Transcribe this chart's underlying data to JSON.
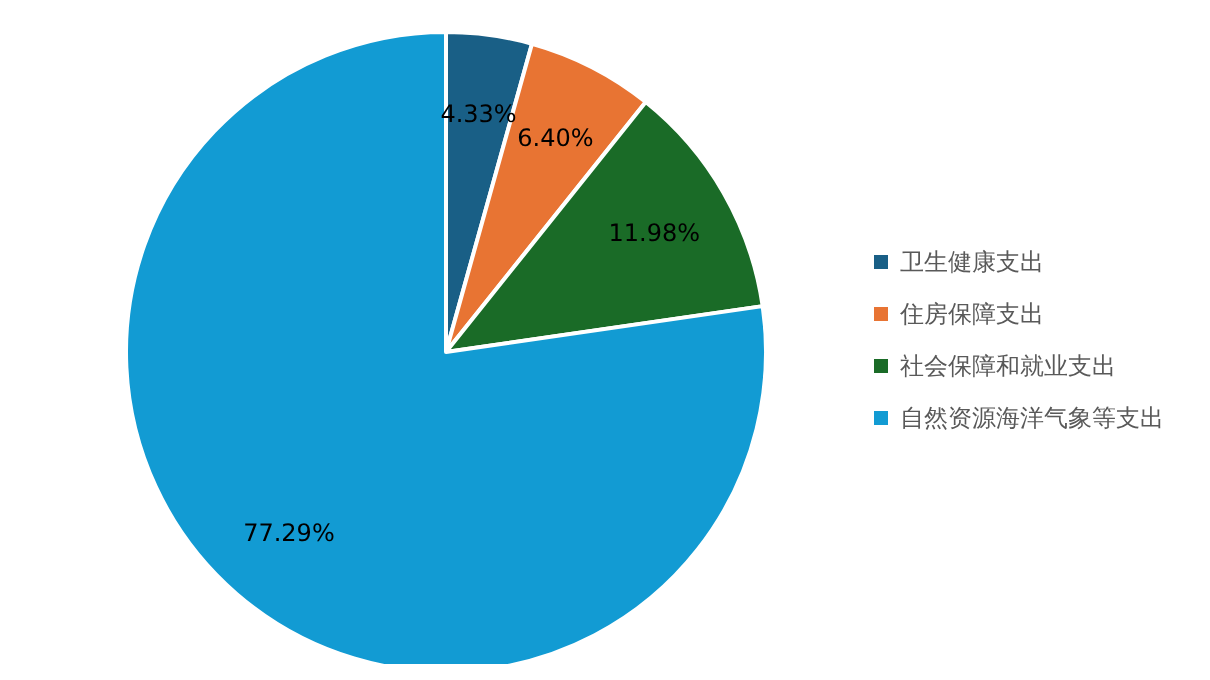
{
  "chart_data": {
    "type": "pie",
    "categories": [
      "卫生健康支出",
      "住房保障支出",
      "社会保障和就业支出",
      "自然资源海洋气象等支出"
    ],
    "values": [
      4.33,
      6.4,
      11.98,
      77.29
    ],
    "colors": [
      "#195f86",
      "#e87433",
      "#1a6b27",
      "#129bd3"
    ],
    "value_labels": [
      "4.33%",
      "6.40%",
      "11.98%",
      "77.29%"
    ],
    "legend": "right"
  }
}
